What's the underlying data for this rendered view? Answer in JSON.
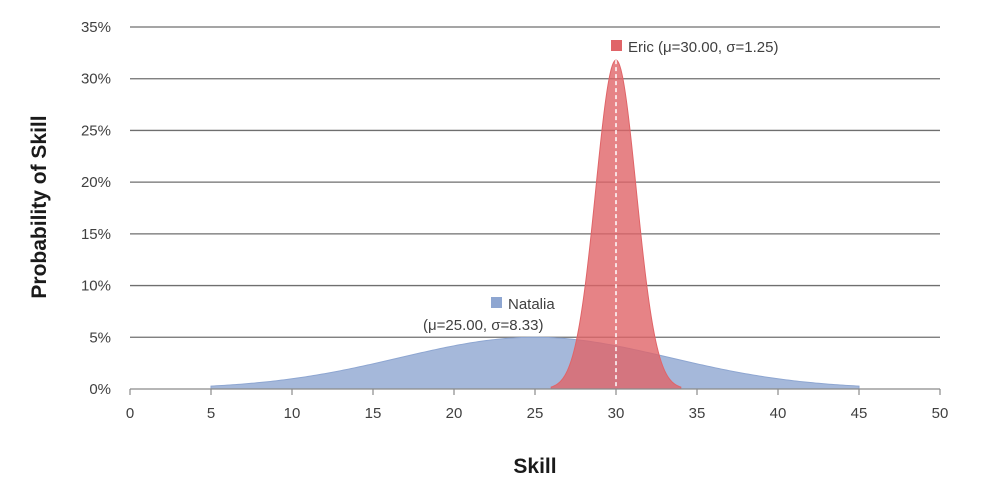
{
  "chart_data": {
    "type": "area",
    "xlabel": "Skill",
    "ylabel": "Probability of Skill",
    "xlim": [
      0,
      50
    ],
    "ylim": [
      0,
      35
    ],
    "x_ticks": [
      "0",
      "5",
      "10",
      "15",
      "20",
      "25",
      "30",
      "35",
      "40",
      "45",
      "50"
    ],
    "y_ticks": [
      "0%",
      "5%",
      "10%",
      "15%",
      "20%",
      "25%",
      "30%",
      "35%"
    ],
    "grid": true,
    "legend": "none (inline annotations)",
    "series": [
      {
        "name": "Natalia",
        "mu": 25.0,
        "sigma": 8.33,
        "x_range": [
          5,
          45
        ],
        "peak_percent": 5,
        "color": "#8ea6d1",
        "annotation_line1": "Natalia",
        "annotation_line2": "(μ=25.00, σ=8.33)"
      },
      {
        "name": "Eric",
        "mu": 30.0,
        "sigma": 1.25,
        "x_range": [
          26,
          34
        ],
        "peak_percent": 31.8,
        "color": "#e06468",
        "annotation_line1": "Eric (μ=30.00, σ=1.25)"
      }
    ],
    "mean_marker_x": 30
  }
}
